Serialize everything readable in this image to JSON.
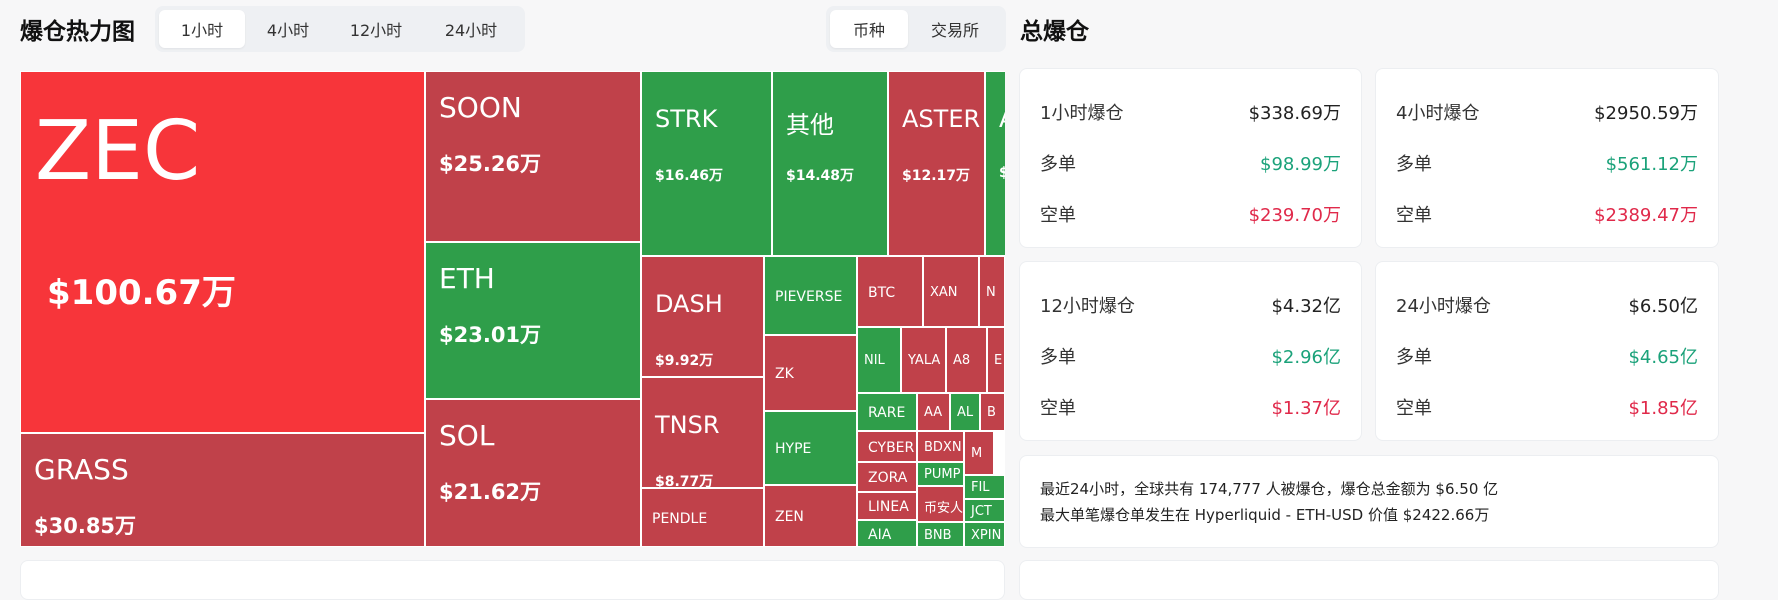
{
  "heatmap": {
    "title": "爆仓热力图",
    "time_tabs": [
      "1小时",
      "4小时",
      "12小时",
      "24小时"
    ],
    "active_time_tab": "1小时",
    "group_tabs": [
      "币种",
      "交易所"
    ],
    "active_group_tab": "币种",
    "colors": {
      "red_strong": "#f7353a",
      "red": "#c0414a",
      "green": "#2f9e4a"
    },
    "tiles": [
      {
        "name": "ZEC",
        "value": "$100.67万",
        "color": "red_strong",
        "size": "xl"
      },
      {
        "name": "GRASS",
        "value": "$30.85万",
        "color": "red",
        "size": "l"
      },
      {
        "name": "SOON",
        "value": "$25.26万",
        "color": "red",
        "size": "l"
      },
      {
        "name": "ETH",
        "value": "$23.01万",
        "color": "green",
        "size": "l"
      },
      {
        "name": "SOL",
        "value": "$21.62万",
        "color": "red",
        "size": "l"
      },
      {
        "name": "STRK",
        "value": "$16.46万",
        "color": "green",
        "size": "m"
      },
      {
        "name": "其他",
        "value": "$14.48万",
        "color": "green",
        "size": "m"
      },
      {
        "name": "ASTER",
        "value": "$12.17万",
        "color": "red",
        "size": "m"
      },
      {
        "name": "A",
        "value": "$",
        "color": "green",
        "size": "m"
      },
      {
        "name": "DASH",
        "value": "$9.92万",
        "color": "red",
        "size": "m"
      },
      {
        "name": "TNSR",
        "value": "$8.77万",
        "color": "red",
        "size": "m"
      },
      {
        "name": "PENDLE",
        "value": "",
        "color": "red",
        "size": "s"
      },
      {
        "name": "PIEVERSE",
        "value": "",
        "color": "green",
        "size": "s"
      },
      {
        "name": "ZK",
        "value": "",
        "color": "red",
        "size": "s"
      },
      {
        "name": "HYPE",
        "value": "",
        "color": "green",
        "size": "s"
      },
      {
        "name": "ZEN",
        "value": "",
        "color": "red",
        "size": "s"
      },
      {
        "name": "BTC",
        "value": "",
        "color": "red",
        "size": "s"
      },
      {
        "name": "XAN",
        "value": "",
        "color": "red",
        "size": "s"
      },
      {
        "name": "N",
        "value": "",
        "color": "red",
        "size": "s"
      },
      {
        "name": "NIL",
        "value": "",
        "color": "green",
        "size": "s"
      },
      {
        "name": "YALA",
        "value": "",
        "color": "red",
        "size": "s"
      },
      {
        "name": "A8",
        "value": "",
        "color": "red",
        "size": "s"
      },
      {
        "name": "E",
        "value": "",
        "color": "red",
        "size": "s"
      },
      {
        "name": "RARE",
        "value": "",
        "color": "green",
        "size": "s"
      },
      {
        "name": "AA",
        "value": "",
        "color": "red",
        "size": "s"
      },
      {
        "name": "AL",
        "value": "",
        "color": "green",
        "size": "s"
      },
      {
        "name": "B",
        "value": "",
        "color": "red",
        "size": "s"
      },
      {
        "name": "CYBER",
        "value": "",
        "color": "red",
        "size": "s"
      },
      {
        "name": "BDXN",
        "value": "",
        "color": "red",
        "size": "s"
      },
      {
        "name": "M",
        "value": "",
        "color": "red",
        "size": "s"
      },
      {
        "name": "ZORA",
        "value": "",
        "color": "red",
        "size": "s"
      },
      {
        "name": "PUMP",
        "value": "",
        "color": "green",
        "size": "s"
      },
      {
        "name": "币安人生",
        "value": "",
        "color": "red",
        "size": "s"
      },
      {
        "name": "FIL",
        "value": "",
        "color": "green",
        "size": "s"
      },
      {
        "name": "LINEA",
        "value": "",
        "color": "red",
        "size": "s"
      },
      {
        "name": "JCT",
        "value": "",
        "color": "green",
        "size": "s"
      },
      {
        "name": "AIA",
        "value": "",
        "color": "green",
        "size": "s"
      },
      {
        "name": "BNB",
        "value": "",
        "color": "green",
        "size": "s"
      },
      {
        "name": "XPIN",
        "value": "",
        "color": "green",
        "size": "s"
      }
    ]
  },
  "total": {
    "title": "总爆仓",
    "long_label": "多单",
    "short_label": "空单",
    "cards": [
      {
        "label": "1小时爆仓",
        "total": "$338.69万",
        "long": "$98.99万",
        "short": "$239.70万"
      },
      {
        "label": "4小时爆仓",
        "total": "$2950.59万",
        "long": "$561.12万",
        "short": "$2389.47万"
      },
      {
        "label": "12小时爆仓",
        "total": "$4.32亿",
        "long": "$2.96亿",
        "short": "$1.37亿"
      },
      {
        "label": "24小时爆仓",
        "total": "$6.50亿",
        "long": "$4.65亿",
        "short": "$1.85亿"
      }
    ],
    "summary_line1": "最近24小时，全球共有 174,777 人被爆仓，爆仓总金额为 $6.50 亿",
    "summary_line2": "最大单笔爆仓单发生在 Hyperliquid - ETH-USD 价值 $2422.66万"
  }
}
